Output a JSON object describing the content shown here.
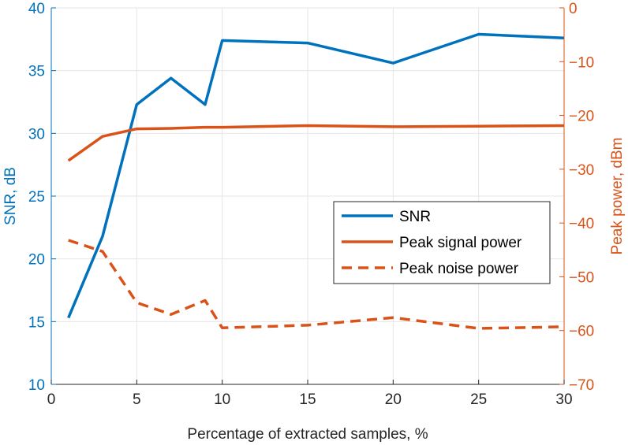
{
  "chart_data": {
    "type": "line",
    "xlabel": "Percentage of extracted samples, %",
    "xlim": [
      0,
      30
    ],
    "xticks": [
      0,
      5,
      10,
      15,
      20,
      25,
      30
    ],
    "grid": true,
    "legend_position": "center-right",
    "y_left": {
      "label": "SNR, dB",
      "lim": [
        10,
        40
      ],
      "ticks": [
        10,
        15,
        20,
        25,
        30,
        35,
        40
      ],
      "color": "#0072BD"
    },
    "y_right": {
      "label": "Peak power, dBm",
      "lim": [
        -70,
        0
      ],
      "ticks": [
        -70,
        -60,
        -50,
        -40,
        -30,
        -20,
        -10,
        0
      ],
      "color": "#D95319"
    },
    "series": [
      {
        "name": "SNR",
        "axis": "left",
        "color": "#0072BD",
        "style": "solid",
        "x": [
          1,
          3,
          5,
          7,
          9,
          10,
          15,
          20,
          25,
          30
        ],
        "values": [
          15.3,
          21.8,
          32.3,
          34.4,
          32.3,
          37.4,
          37.2,
          35.6,
          37.9,
          37.6
        ]
      },
      {
        "name": "Peak signal power",
        "axis": "right",
        "color": "#D95319",
        "style": "solid",
        "x": [
          1,
          3,
          5,
          7,
          9,
          10,
          15,
          20,
          25,
          30
        ],
        "values": [
          -28.4,
          -23.9,
          -22.5,
          -22.4,
          -22.2,
          -22.2,
          -21.9,
          -22.1,
          -22.0,
          -21.9
        ]
      },
      {
        "name": "Peak noise power",
        "axis": "right",
        "color": "#D95319",
        "style": "dashed",
        "x": [
          1,
          3,
          5,
          7,
          9,
          10,
          15,
          20,
          25,
          30
        ],
        "values": [
          -43.2,
          -45.3,
          -54.8,
          -57.0,
          -54.4,
          -59.5,
          -59.0,
          -57.6,
          -59.6,
          -59.3
        ]
      }
    ]
  }
}
